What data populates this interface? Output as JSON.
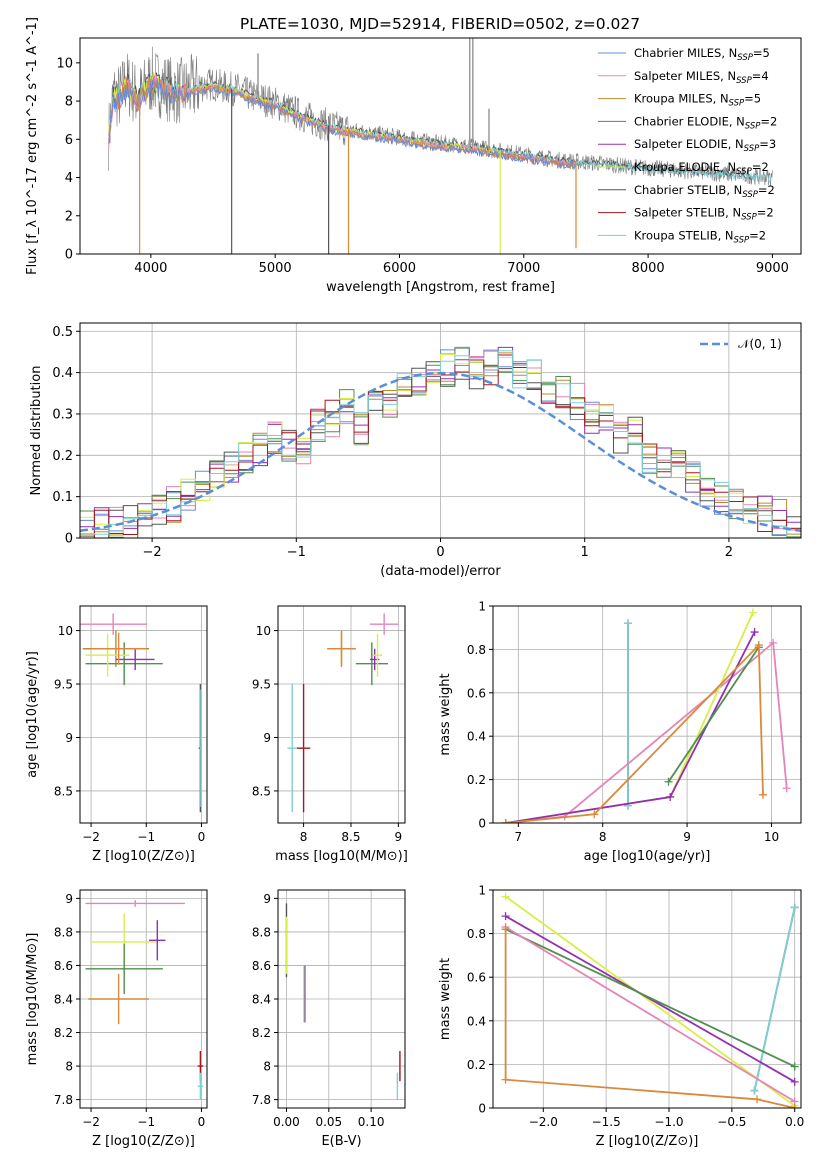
{
  "figure_title": "PLATE=1030, MJD=52914, FIBERID=0502, z=0.027",
  "colors": {
    "chabrier_miles": "#6a8ad8",
    "salpeter_miles": "#e584b9",
    "kroupa_miles": "#c08a2e",
    "chabrier_elodie": "#4f8f4f",
    "salpeter_elodie": "#9330b1",
    "kroupa_elodie": "#d9ee46",
    "chabrier_stelib": "#555555",
    "salpeter_stelib": "#a8171e",
    "kroupa_stelib": "#7dd0d6",
    "fit_highlight": "#d98a3a",
    "normal_curve": "#5b8ed6",
    "grid": "#b0b0b0"
  },
  "chart_data": [
    {
      "id": "spectrum",
      "type": "line",
      "title": "PLATE=1030, MJD=52914, FIBERID=0502, z=0.027",
      "xlabel": "wavelength [Angstrom, rest frame]",
      "ylabel": "Flux [f_λ 10^-17 erg cm^-2 s^-1 A^-1]",
      "xlim": [
        3430,
        9230
      ],
      "ylim": [
        0,
        11.3
      ],
      "xticks": [
        4000,
        5000,
        6000,
        7000,
        8000,
        9000
      ],
      "yticks": [
        0,
        2,
        4,
        6,
        8,
        10
      ],
      "grid": false,
      "legend_position": "top-right",
      "legend": [
        {
          "label": "Chabrier MILES, N",
          "sub": "SSP",
          "suffix": "=5",
          "color_key": "chabrier_miles"
        },
        {
          "label": "Salpeter MILES, N",
          "sub": "SSP",
          "suffix": "=4",
          "color_key": "salpeter_miles"
        },
        {
          "label": "Kroupa MILES, N",
          "sub": "SSP",
          "suffix": "=5",
          "color_key": "kroupa_miles"
        },
        {
          "label": "Chabrier ELODIE, N",
          "sub": "SSP",
          "suffix": "=2",
          "color_key": "chabrier_elodie"
        },
        {
          "label": "Salpeter ELODIE, N",
          "sub": "SSP",
          "suffix": "=3",
          "color_key": "salpeter_elodie"
        },
        {
          "label": "Kroupa ELODIE, N",
          "sub": "SSP",
          "suffix": "=2",
          "color_key": "kroupa_elodie"
        },
        {
          "label": "Chabrier STELIB, N",
          "sub": "SSP",
          "suffix": "=2",
          "color_key": "chabrier_stelib"
        },
        {
          "label": "Salpeter STELIB, N",
          "sub": "SSP",
          "suffix": "=2",
          "color_key": "salpeter_stelib"
        },
        {
          "label": "Kroupa STELIB, N",
          "sub": "SSP",
          "suffix": "=2",
          "color_key": "kroupa_stelib"
        }
      ],
      "model_envelope": [
        [
          3650,
          5.6
        ],
        [
          3700,
          8.4
        ],
        [
          3750,
          8.2
        ],
        [
          3800,
          9.0
        ],
        [
          3850,
          8.6
        ],
        [
          3900,
          8.1
        ],
        [
          3950,
          8.6
        ],
        [
          4000,
          9.1
        ],
        [
          4100,
          8.8
        ],
        [
          4200,
          8.5
        ],
        [
          4300,
          8.6
        ],
        [
          4400,
          8.8
        ],
        [
          4500,
          8.9
        ],
        [
          4600,
          8.7
        ],
        [
          4700,
          8.6
        ],
        [
          4800,
          8.3
        ],
        [
          4900,
          8.1
        ],
        [
          5000,
          7.9
        ],
        [
          5100,
          7.6
        ],
        [
          5200,
          7.3
        ],
        [
          5300,
          7.0
        ],
        [
          5400,
          6.8
        ],
        [
          5500,
          6.6
        ],
        [
          5600,
          6.5
        ],
        [
          5700,
          6.4
        ],
        [
          5800,
          6.3
        ],
        [
          5900,
          6.2
        ],
        [
          6000,
          6.1
        ],
        [
          6100,
          6.0
        ],
        [
          6200,
          5.9
        ],
        [
          6300,
          5.8
        ],
        [
          6400,
          5.75
        ],
        [
          6500,
          5.7
        ],
        [
          6600,
          5.6
        ],
        [
          6700,
          5.5
        ],
        [
          6800,
          5.4
        ],
        [
          6900,
          5.3
        ],
        [
          7000,
          5.2
        ],
        [
          7100,
          5.1
        ],
        [
          7200,
          5.0
        ],
        [
          7300,
          4.9
        ],
        [
          7400,
          4.85
        ],
        [
          7500,
          4.8
        ],
        [
          7600,
          4.75
        ],
        [
          7700,
          4.7
        ],
        [
          7800,
          4.6
        ],
        [
          7900,
          4.55
        ],
        [
          8000,
          4.5
        ],
        [
          8200,
          4.4
        ],
        [
          8400,
          4.3
        ],
        [
          8600,
          4.2
        ],
        [
          8800,
          4.1
        ],
        [
          9000,
          4.0
        ]
      ],
      "spikes": [
        {
          "x": 3910,
          "y": 0,
          "color_key": "fit_highlight"
        },
        {
          "x": 5590,
          "y": 0,
          "color_key": "fit_highlight"
        },
        {
          "x": 6810,
          "y": 0,
          "color_key": "kroupa_elodie"
        },
        {
          "x": 7420,
          "y": 0.3,
          "color_key": "fit_highlight"
        },
        {
          "x": 5430,
          "y": 0,
          "color_key": "chabrier_stelib"
        },
        {
          "x": 4650,
          "y": 0,
          "color_key": "chabrier_stelib"
        }
      ]
    },
    {
      "id": "residuals",
      "type": "line",
      "xlabel": "(data-model)/error",
      "ylabel": "Normed distribution",
      "xlim": [
        -2.5,
        2.5
      ],
      "ylim": [
        0,
        0.52
      ],
      "xticks": [
        -2,
        -1,
        0,
        1,
        2
      ],
      "xticklabels": [
        "−2",
        "−1",
        "0",
        "1",
        "2"
      ],
      "yticks": [
        0.0,
        0.1,
        0.2,
        0.3,
        0.4,
        0.5
      ],
      "grid": true,
      "legend_position": "top-right",
      "legend": [
        {
          "label": "𝒩(0, 1)",
          "color_key": "normal_curve"
        }
      ],
      "normal": {
        "mean": 0,
        "sigma": 1
      },
      "histogram": {
        "bins": 50,
        "base": [
          0.03,
          0.03,
          0.04,
          0.04,
          0.05,
          0.06,
          0.08,
          0.1,
          0.13,
          0.16,
          0.17,
          0.2,
          0.22,
          0.24,
          0.23,
          0.21,
          0.27,
          0.29,
          0.32,
          0.26,
          0.31,
          0.33,
          0.36,
          0.38,
          0.4,
          0.41,
          0.42,
          0.4,
          0.41,
          0.44,
          0.4,
          0.39,
          0.37,
          0.36,
          0.33,
          0.29,
          0.28,
          0.25,
          0.27,
          0.2,
          0.18,
          0.18,
          0.14,
          0.12,
          0.1,
          0.09,
          0.07,
          0.06,
          0.05,
          0.03
        ],
        "series_order": [
          "chabrier_miles",
          "salpeter_miles",
          "kroupa_miles",
          "chabrier_elodie",
          "salpeter_elodie",
          "kroupa_elodie",
          "chabrier_stelib",
          "salpeter_stelib",
          "kroupa_stelib"
        ]
      }
    },
    {
      "id": "age_vs_Z",
      "type": "scatter",
      "xlabel": "Z [log10(Z/Z⊙)]",
      "ylabel": "age [log10(age/yr)]",
      "xlim": [
        -2.2,
        0.1
      ],
      "ylim": [
        8.2,
        10.23
      ],
      "xticks": [
        -2,
        -1,
        0
      ],
      "xticklabels": [
        "−2",
        "−1",
        "0"
      ],
      "yticks": [
        8.5,
        9.0,
        9.5,
        10.0
      ],
      "grid": true,
      "points": [
        {
          "x": -1.6,
          "y": 10.06,
          "xerr": 0.62,
          "yerr": 0.1,
          "color_key": "salpeter_miles"
        },
        {
          "x": -1.55,
          "y": 9.83,
          "xerr": 0.6,
          "yerr": 0.17,
          "color_key": "kroupa_miles"
        },
        {
          "x": -1.4,
          "y": 9.69,
          "xerr": 0.7,
          "yerr": 0.2,
          "color_key": "chabrier_elodie"
        },
        {
          "x": -1.2,
          "y": 9.73,
          "xerr": 0.35,
          "yerr": 0.1,
          "color_key": "salpeter_elodie"
        },
        {
          "x": -1.7,
          "y": 9.77,
          "xerr": 0.4,
          "yerr": 0.2,
          "color_key": "kroupa_elodie"
        },
        {
          "x": -1.5,
          "y": 9.83,
          "xerr": 0.5,
          "yerr": 0.15,
          "color_key": "fit_highlight"
        },
        {
          "x": -0.02,
          "y": 8.9,
          "xerr": 0.03,
          "yerr": 0.6,
          "color_key": "chabrier_stelib"
        },
        {
          "x": -0.01,
          "y": 8.9,
          "xerr": 0.02,
          "yerr": 0.55,
          "color_key": "kroupa_stelib"
        }
      ]
    },
    {
      "id": "age_vs_mass",
      "type": "scatter",
      "xlabel": "mass [log10(M/M⊙)]",
      "xlim": [
        7.73,
        9.07
      ],
      "ylim": [
        8.2,
        10.23
      ],
      "xticks": [
        8.0,
        8.5,
        9.0
      ],
      "yticks": [
        8.5,
        9.0,
        9.5,
        10.0
      ],
      "grid": true,
      "points": [
        {
          "x": 8.85,
          "y": 10.06,
          "xerr": 0.15,
          "yerr": 0.1,
          "color_key": "salpeter_miles"
        },
        {
          "x": 8.4,
          "y": 9.83,
          "xerr": 0.15,
          "yerr": 0.17,
          "color_key": "kroupa_miles"
        },
        {
          "x": 8.72,
          "y": 9.69,
          "xerr": 0.17,
          "yerr": 0.2,
          "color_key": "chabrier_elodie"
        },
        {
          "x": 8.75,
          "y": 9.73,
          "xerr": 0.05,
          "yerr": 0.1,
          "color_key": "salpeter_elodie"
        },
        {
          "x": 8.78,
          "y": 9.77,
          "xerr": 0.05,
          "yerr": 0.2,
          "color_key": "kroupa_elodie"
        },
        {
          "x": 8.4,
          "y": 9.83,
          "xerr": 0.15,
          "yerr": 0.15,
          "color_key": "fit_highlight"
        },
        {
          "x": 8.0,
          "y": 8.9,
          "xerr": 0.07,
          "yerr": 0.6,
          "color_key": "salpeter_stelib"
        },
        {
          "x": 7.88,
          "y": 8.9,
          "xerr": 0.05,
          "yerr": 0.6,
          "color_key": "kroupa_stelib"
        }
      ]
    },
    {
      "id": "weight_vs_age",
      "type": "line",
      "xlabel": "age [log10(age/yr)]",
      "ylabel": "mass weight",
      "xlim": [
        6.7,
        10.35
      ],
      "ylim": [
        0,
        1.0
      ],
      "xticks": [
        7,
        8,
        9,
        10
      ],
      "yticks": [
        0.0,
        0.2,
        0.4,
        0.6,
        0.8,
        1.0
      ],
      "grid": true,
      "series": [
        {
          "color_key": "chabrier_stelib",
          "x": [
            8.3,
            8.3
          ],
          "y": [
            0.08,
            0.92
          ]
        },
        {
          "color_key": "kroupa_stelib",
          "x": [
            8.3,
            8.3
          ],
          "y": [
            0.08,
            0.92
          ]
        },
        {
          "color_key": "salpeter_miles",
          "x": [
            6.85,
            7.55,
            10.02,
            10.18
          ],
          "y": [
            0.0,
            0.03,
            0.83,
            0.16
          ]
        },
        {
          "color_key": "kroupa_elodie",
          "x": [
            6.85,
            8.8,
            9.78
          ],
          "y": [
            0.0,
            0.12,
            0.97
          ]
        },
        {
          "color_key": "salpeter_elodie",
          "x": [
            6.85,
            8.8,
            9.8
          ],
          "y": [
            0.0,
            0.12,
            0.88
          ]
        },
        {
          "color_key": "chabrier_elodie",
          "x": [
            8.78,
            9.85
          ],
          "y": [
            0.19,
            0.81
          ]
        },
        {
          "color_key": "fit_highlight",
          "x": [
            6.85,
            7.9,
            9.85,
            9.9
          ],
          "y": [
            0.0,
            0.04,
            0.82,
            0.13
          ]
        }
      ]
    },
    {
      "id": "mass_vs_Z",
      "type": "scatter",
      "xlabel": "Z [log10(Z/Z⊙)]",
      "ylabel": "mass [log10(M/M⊙)]",
      "xlim": [
        -2.2,
        0.1
      ],
      "ylim": [
        7.75,
        9.05
      ],
      "xticks": [
        -2,
        -1,
        0
      ],
      "xticklabels": [
        "−2",
        "−1",
        "0"
      ],
      "yticks": [
        7.8,
        8.0,
        8.2,
        8.4,
        8.6,
        8.8,
        9.0
      ],
      "grid": true,
      "points": [
        {
          "x": -1.2,
          "y": 8.97,
          "xerr": 0.9,
          "yerr": 0.02,
          "color_key": "salpeter_miles"
        },
        {
          "x": -1.4,
          "y": 8.74,
          "xerr": 0.6,
          "yerr": 0.17,
          "color_key": "kroupa_elodie"
        },
        {
          "x": -0.8,
          "y": 8.75,
          "xerr": 0.15,
          "yerr": 0.12,
          "color_key": "salpeter_elodie"
        },
        {
          "x": -1.4,
          "y": 8.58,
          "xerr": 0.7,
          "yerr": 0.15,
          "color_key": "chabrier_elodie"
        },
        {
          "x": -1.5,
          "y": 8.4,
          "xerr": 0.55,
          "yerr": 0.15,
          "color_key": "fit_highlight"
        },
        {
          "x": -0.02,
          "y": 8.0,
          "xerr": 0.05,
          "yerr": 0.09,
          "color_key": "salpeter_stelib"
        },
        {
          "x": -0.02,
          "y": 7.88,
          "xerr": 0.05,
          "yerr": 0.08,
          "color_key": "kroupa_stelib"
        }
      ]
    },
    {
      "id": "mass_vs_ebv",
      "type": "scatter",
      "xlabel": "E(B-V)",
      "xlim": [
        -0.01,
        0.14
      ],
      "ylim": [
        7.75,
        9.05
      ],
      "xticks": [
        0.0,
        0.05,
        0.1
      ],
      "xticklabels": [
        "0.00",
        "0.05",
        "0.10"
      ],
      "yticks": [
        7.8,
        8.0,
        8.2,
        8.4,
        8.6,
        8.8,
        9.0
      ],
      "grid": true,
      "points": [
        {
          "x": 0.0,
          "y": 8.75,
          "xerr": 0.0,
          "yerr": 0.22,
          "color_key": "chabrier_stelib"
        },
        {
          "x": 0.0,
          "y": 8.72,
          "xerr": 0.0,
          "yerr": 0.17,
          "color_key": "kroupa_elodie"
        },
        {
          "x": 0.021,
          "y": 8.43,
          "xerr": 0.0,
          "yerr": 0.17,
          "color_key": "fit_highlight"
        },
        {
          "x": 0.022,
          "y": 8.43,
          "xerr": 0.0,
          "yerr": 0.17,
          "color_key": "chabrier_miles"
        },
        {
          "x": 0.134,
          "y": 8.0,
          "xerr": 0.0,
          "yerr": 0.09,
          "color_key": "salpeter_stelib"
        },
        {
          "x": 0.131,
          "y": 7.88,
          "xerr": 0.0,
          "yerr": 0.08,
          "color_key": "kroupa_stelib"
        }
      ]
    },
    {
      "id": "weight_vs_Z",
      "type": "line",
      "xlabel": "Z [log10(Z/Z⊙)]",
      "ylabel": "mass weight",
      "xlim": [
        -2.4,
        0.05
      ],
      "ylim": [
        0,
        1.0
      ],
      "xticks": [
        -2.0,
        -1.5,
        -1.0,
        -0.5,
        0.0
      ],
      "xticklabels": [
        "−2.0",
        "−1.5",
        "−1.0",
        "−0.5",
        "0.0"
      ],
      "yticks": [
        0.0,
        0.2,
        0.4,
        0.6,
        0.8,
        1.0
      ],
      "grid": true,
      "series": [
        {
          "color_key": "chabrier_stelib",
          "x": [
            -0.32,
            0.0
          ],
          "y": [
            0.08,
            0.92
          ]
        },
        {
          "color_key": "kroupa_stelib",
          "x": [
            -0.32,
            0.0
          ],
          "y": [
            0.08,
            0.92
          ]
        },
        {
          "color_key": "kroupa_elodie",
          "x": [
            -2.3,
            0.0
          ],
          "y": [
            0.97,
            0.01
          ]
        },
        {
          "color_key": "salpeter_elodie",
          "x": [
            -2.3,
            0.0
          ],
          "y": [
            0.88,
            0.12
          ]
        },
        {
          "color_key": "chabrier_elodie",
          "x": [
            -2.3,
            0.0
          ],
          "y": [
            0.82,
            0.19
          ]
        },
        {
          "color_key": "salpeter_miles",
          "x": [
            -2.3,
            0.0
          ],
          "y": [
            0.83,
            0.03
          ]
        },
        {
          "color_key": "fit_highlight",
          "x": [
            -2.3,
            -2.3,
            -0.3,
            0.0
          ],
          "y": [
            0.82,
            0.13,
            0.04,
            0.0
          ]
        }
      ]
    }
  ]
}
